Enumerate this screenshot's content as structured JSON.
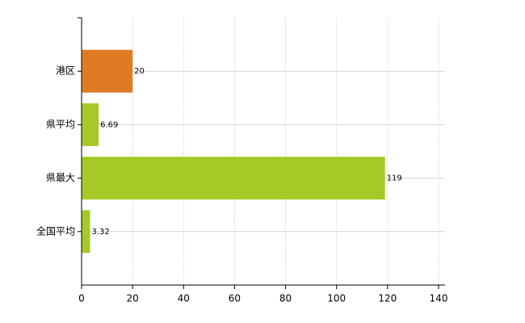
{
  "chart_data": {
    "type": "bar",
    "orientation": "horizontal",
    "categories": [
      "港区",
      "県平均",
      "県最大",
      "全国平均"
    ],
    "values": [
      20,
      6.69,
      119,
      3.32
    ],
    "colors": [
      "#e07b24",
      "#a5c926",
      "#a5c926",
      "#a5c926"
    ],
    "xlim": [
      0,
      140
    ],
    "xticks": [
      0,
      20,
      40,
      60,
      80,
      100,
      120,
      140
    ],
    "grid": true
  }
}
